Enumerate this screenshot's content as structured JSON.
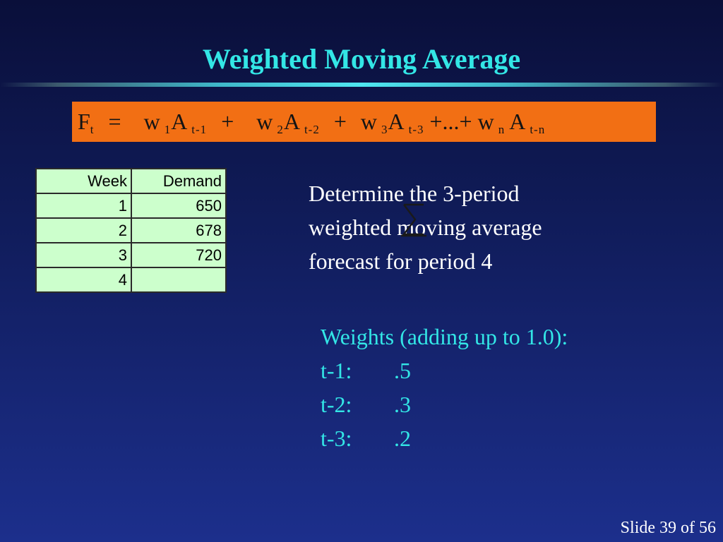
{
  "title": "Weighted Moving Average",
  "formula": {
    "F": "F",
    "F_sub": "t",
    "eq": "=",
    "w1": "w",
    "w1_sub": "1",
    "A1": "A",
    "A1_sub": "t-1",
    "plus1": "+",
    "w2": "w",
    "w2_sub": "2",
    "A2": "A",
    "A2_sub": "t-2",
    "plus2": "+",
    "w3": "w",
    "w3_sub": "3",
    "A3": "A",
    "A3_sub": "t-3",
    "ellipsis": "+...+",
    "wn": "w",
    "wn_sub": "n",
    "An": "A",
    "An_sub": "t-n"
  },
  "table": {
    "headers": [
      "Week",
      "Demand"
    ],
    "rows": [
      [
        "1",
        "650"
      ],
      [
        "2",
        "678"
      ],
      [
        "3",
        "720"
      ],
      [
        "4",
        ""
      ]
    ]
  },
  "question": {
    "line1": "Determine the 3-period",
    "line2": "weighted moving average",
    "line3": "forecast for period 4"
  },
  "weights": {
    "heading": "Weights (adding up to 1.0):",
    "items": [
      {
        "label": "t-1:",
        "value": ".5"
      },
      {
        "label": "t-2:",
        "value": ".3"
      },
      {
        "label": "t-3:",
        "value": ".2"
      }
    ]
  },
  "footer": "Slide 39 of 56",
  "colors": {
    "title": "#33e6e6",
    "formula_box": "#f26f14",
    "table_cell": "#ccffcc",
    "weights_text": "#33e6e6",
    "body_text": "#ffffff"
  }
}
